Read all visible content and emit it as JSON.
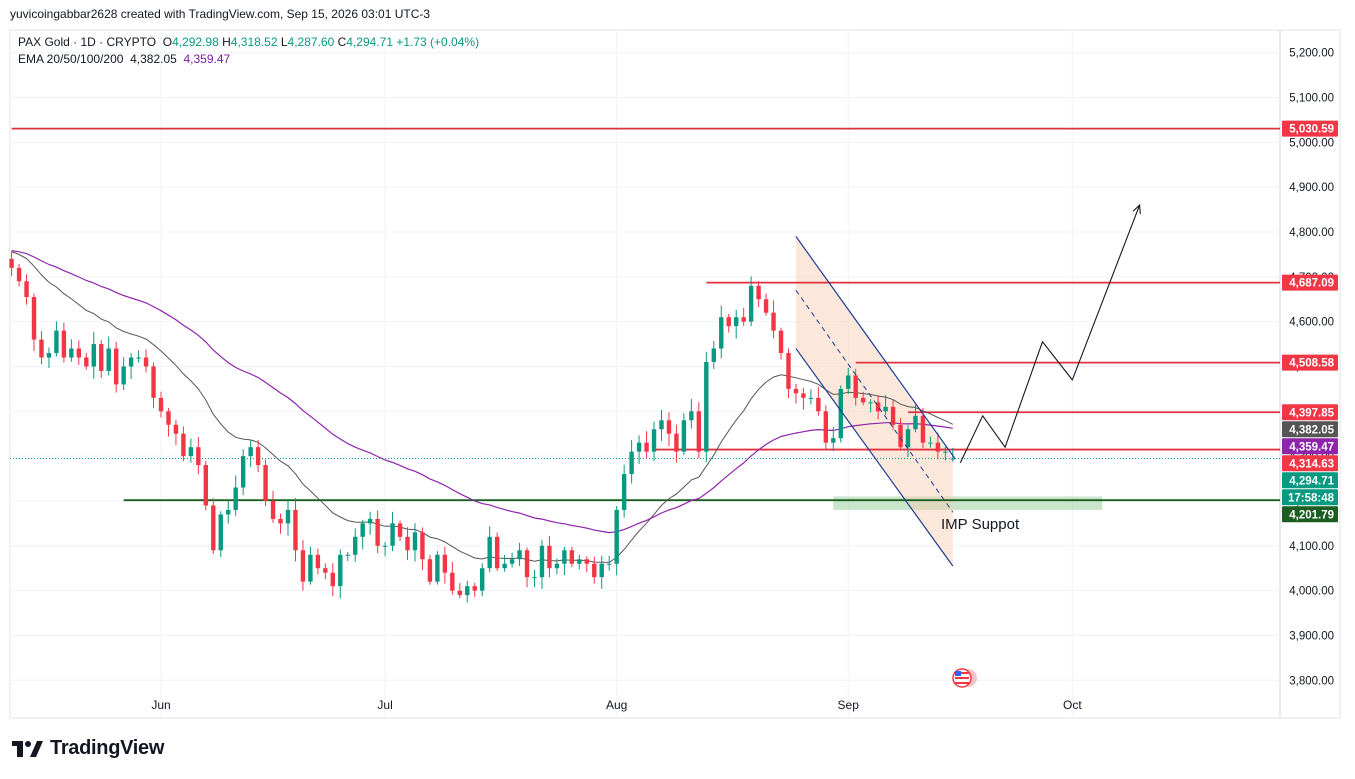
{
  "author_line": "yuvicoingabbar2628 created with TradingView.com, Sep 15, 2026 03:01 UTC-3",
  "symbol": {
    "name": "PAX Gold · 1D · CRYPTO",
    "o_label": "O",
    "o": "4,292.98",
    "h_label": "H",
    "h": "4,318.52",
    "l_label": "L",
    "l": "4,287.60",
    "c_label": "C",
    "c": "4,294.71",
    "change": "+1.73 (+0.04%)"
  },
  "ema": {
    "label": "EMA 20/50/100/200",
    "ema20": "4,382.05",
    "ema50": "4,359.47"
  },
  "annotation": "IMP Suppot",
  "brand": "TradingView",
  "colors": {
    "up": "#089981",
    "down": "#f23645",
    "ema20": "#555555",
    "ema50": "#8e24aa",
    "level": "#e0313f",
    "support": "#1b5e20"
  },
  "chart_data": {
    "type": "candlestick",
    "y_axis_ticks": [
      5200,
      5100,
      5000,
      4900,
      4800,
      4700,
      4600,
      4500,
      4400,
      4300,
      4200,
      4100,
      4000,
      3900,
      3800
    ],
    "y_axis_labels": [
      "5,200.00",
      "5,100.00",
      "5,000.00",
      "4,900.00",
      "4,800.00",
      "4,700.00",
      "4,600.00",
      "4,500.00",
      "4,400.00",
      "4,300.00",
      "4,200.00",
      "4,100.00",
      "4,000.00",
      "3,900.00",
      "3,800.00"
    ],
    "ylim": [
      3770,
      5260
    ],
    "x_axis_labels": [
      {
        "label": "Jun",
        "day": 0
      },
      {
        "label": "Jul",
        "day": 30
      },
      {
        "label": "Aug",
        "day": 61
      },
      {
        "label": "Sep",
        "day": 92
      },
      {
        "label": "Oct",
        "day": 122
      }
    ],
    "day_range": [
      -20,
      158
    ],
    "last_day": 106,
    "close_start": 4740,
    "closes": [
      4720,
      4690,
      4655,
      4560,
      4520,
      4530,
      4580,
      4520,
      4540,
      4520,
      4500,
      4550,
      4490,
      4540,
      4460,
      4500,
      4520,
      4520,
      4500,
      4430,
      4400,
      4370,
      4350,
      4300,
      4320,
      4280,
      4190,
      4090,
      4170,
      4180,
      4230,
      4300,
      4320,
      4280,
      4200,
      4160,
      4150,
      4180,
      4090,
      4020,
      4080,
      4050,
      4040,
      4010,
      4080,
      4080,
      4120,
      4150,
      4160,
      4100,
      4100,
      4150,
      4120,
      4090,
      4130,
      4070,
      4020,
      4080,
      4040,
      4000,
      3990,
      4010,
      4000,
      4050,
      4120,
      4050,
      4060,
      4070,
      4090,
      4030,
      4030,
      4100,
      4050,
      4060,
      4090,
      4060,
      4070,
      4060,
      4030,
      4060,
      4060,
      4180,
      4260,
      4310,
      4330,
      4310,
      4360,
      4380,
      4350,
      4310,
      4380,
      4400,
      4310,
      4510,
      4540,
      4610,
      4590,
      4610,
      4600,
      4680,
      4650,
      4620,
      4580,
      4530,
      4450,
      4440,
      4430,
      4430,
      4400,
      4330,
      4340,
      4450,
      4480,
      4430,
      4420,
      4420,
      4400,
      4410,
      4370,
      4320,
      4360,
      4390,
      4330,
      4330,
      4310,
      4310,
      4294.71
    ],
    "price_labels": [
      {
        "text": "5,030.59",
        "value": 5030.59,
        "color": "#f23645"
      },
      {
        "text": "4,687.09",
        "value": 4687.09,
        "color": "#f23645"
      },
      {
        "text": "4,508.58",
        "value": 4508.58,
        "color": "#f23645"
      },
      {
        "text": "4,397.85",
        "value": 4397.85,
        "color": "#f23645"
      },
      {
        "text": "4,382.05",
        "value": 4382.05,
        "color": "#555555"
      },
      {
        "text": "4,359.47",
        "value": 4359.47,
        "color": "#8e24aa"
      },
      {
        "text": "4,314.63",
        "value": 4314.63,
        "color": "#f23645"
      },
      {
        "text": "4,294.71",
        "value": 4294.71,
        "color": "#089981"
      },
      {
        "text": "17:58:48",
        "value": 4294.71,
        "color": "#089981"
      },
      {
        "text": "4,201.79",
        "value": 4201.79,
        "color": "#1b5e20"
      }
    ],
    "horizontal_levels": [
      {
        "value": 5030.59,
        "from_day": -20,
        "color": "#e0313f"
      },
      {
        "value": 4687.09,
        "from_day": 73,
        "color": "#e0313f"
      },
      {
        "value": 4508.58,
        "from_day": 93,
        "color": "#e0313f"
      },
      {
        "value": 4397.85,
        "from_day": 100,
        "color": "#e0313f"
      },
      {
        "value": 4314.63,
        "from_day": 66,
        "color": "#e0313f"
      },
      {
        "value": 4201.79,
        "from_day": -5,
        "color": "#1b5e20"
      }
    ],
    "support_zone": {
      "from_day": 90,
      "to_day": 126,
      "low": 4180,
      "high": 4210
    },
    "projection": [
      [
        107,
        4285
      ],
      [
        110,
        4390
      ],
      [
        113,
        4320
      ],
      [
        118,
        4555
      ],
      [
        122,
        4470
      ],
      [
        131,
        4860
      ]
    ],
    "channel": {
      "start_day": 85,
      "end_day": 106,
      "upper": [
        4790,
        4295
      ],
      "lower": [
        4540,
        4055
      ],
      "mid": [
        4670,
        4175
      ]
    }
  }
}
